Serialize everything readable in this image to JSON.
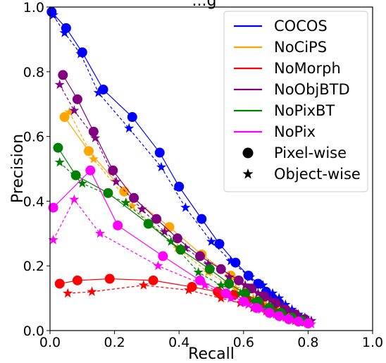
{
  "chart_data": {
    "type": "scatter",
    "title": "...g",
    "xlabel": "Recall",
    "ylabel": "Precision",
    "xlim": [
      0.0,
      1.0
    ],
    "ylim": [
      0.0,
      1.0
    ],
    "xticks": [
      "0.0",
      "0.2",
      "0.4",
      "0.6",
      "0.8",
      "1.0"
    ],
    "yticks": [
      "0.0",
      "0.2",
      "0.4",
      "0.6",
      "0.8",
      "1.0"
    ],
    "grid": false,
    "legend_position": "top-right",
    "series": [
      {
        "name": "COCOS",
        "color": "#0000ff",
        "pixel": [
          [
            0.005,
            0.985
          ],
          [
            0.05,
            0.935
          ],
          [
            0.1,
            0.86
          ],
          [
            0.165,
            0.745
          ],
          [
            0.255,
            0.66
          ],
          [
            0.34,
            0.55
          ],
          [
            0.4,
            0.445
          ],
          [
            0.47,
            0.345
          ],
          [
            0.525,
            0.268
          ],
          [
            0.575,
            0.21
          ],
          [
            0.615,
            0.17
          ],
          [
            0.645,
            0.145
          ],
          [
            0.67,
            0.12
          ],
          [
            0.69,
            0.1
          ],
          [
            0.71,
            0.085
          ],
          [
            0.73,
            0.065
          ],
          [
            0.75,
            0.05
          ],
          [
            0.77,
            0.04
          ],
          [
            0.79,
            0.03
          ]
        ],
        "object": [
          [
            0.01,
            0.975
          ],
          [
            0.045,
            0.92
          ],
          [
            0.095,
            0.855
          ],
          [
            0.15,
            0.735
          ],
          [
            0.245,
            0.625
          ],
          [
            0.345,
            0.505
          ],
          [
            0.42,
            0.38
          ],
          [
            0.5,
            0.275
          ],
          [
            0.56,
            0.215
          ],
          [
            0.62,
            0.165
          ],
          [
            0.66,
            0.14
          ],
          [
            0.69,
            0.115
          ],
          [
            0.71,
            0.1
          ],
          [
            0.73,
            0.08
          ],
          [
            0.75,
            0.065
          ],
          [
            0.77,
            0.05
          ],
          [
            0.79,
            0.04
          ],
          [
            0.81,
            0.03
          ]
        ]
      },
      {
        "name": "NoCiPS",
        "color": "#ffa500",
        "pixel": [
          [
            0.045,
            0.66
          ],
          [
            0.12,
            0.555
          ],
          [
            0.23,
            0.43
          ],
          [
            0.37,
            0.32
          ],
          [
            0.47,
            0.235
          ],
          [
            0.56,
            0.17
          ],
          [
            0.615,
            0.13
          ],
          [
            0.66,
            0.1
          ],
          [
            0.7,
            0.075
          ],
          [
            0.73,
            0.055
          ],
          [
            0.76,
            0.04
          ],
          [
            0.79,
            0.03
          ]
        ],
        "object": [
          [
            0.06,
            0.675
          ],
          [
            0.135,
            0.53
          ],
          [
            0.255,
            0.385
          ],
          [
            0.395,
            0.255
          ],
          [
            0.49,
            0.18
          ],
          [
            0.575,
            0.13
          ],
          [
            0.63,
            0.1
          ],
          [
            0.67,
            0.08
          ],
          [
            0.71,
            0.06
          ],
          [
            0.74,
            0.045
          ],
          [
            0.77,
            0.035
          ],
          [
            0.8,
            0.025
          ]
        ]
      },
      {
        "name": "NoMorph",
        "color": "#ff0000",
        "pixel": [
          [
            0.03,
            0.145
          ],
          [
            0.085,
            0.155
          ],
          [
            0.185,
            0.16
          ],
          [
            0.32,
            0.155
          ],
          [
            0.44,
            0.135
          ],
          [
            0.52,
            0.12
          ],
          [
            0.57,
            0.11
          ],
          [
            0.61,
            0.095
          ],
          [
            0.65,
            0.08
          ],
          [
            0.69,
            0.065
          ],
          [
            0.72,
            0.05
          ],
          [
            0.75,
            0.04
          ],
          [
            0.78,
            0.03
          ]
        ],
        "object": [
          [
            0.055,
            0.115
          ],
          [
            0.13,
            0.12
          ],
          [
            0.29,
            0.14
          ],
          [
            0.43,
            0.125
          ],
          [
            0.53,
            0.1
          ],
          [
            0.59,
            0.085
          ],
          [
            0.63,
            0.07
          ],
          [
            0.67,
            0.06
          ],
          [
            0.7,
            0.05
          ],
          [
            0.73,
            0.04
          ],
          [
            0.76,
            0.03
          ],
          [
            0.79,
            0.025
          ]
        ]
      },
      {
        "name": "NoObjBTD",
        "color": "#800080",
        "pixel": [
          [
            0.04,
            0.79
          ],
          [
            0.085,
            0.715
          ],
          [
            0.135,
            0.615
          ],
          [
            0.195,
            0.495
          ],
          [
            0.26,
            0.41
          ],
          [
            0.33,
            0.345
          ],
          [
            0.395,
            0.285
          ],
          [
            0.465,
            0.23
          ],
          [
            0.53,
            0.19
          ],
          [
            0.585,
            0.155
          ],
          [
            0.625,
            0.13
          ],
          [
            0.665,
            0.105
          ],
          [
            0.7,
            0.085
          ],
          [
            0.73,
            0.065
          ],
          [
            0.76,
            0.05
          ],
          [
            0.79,
            0.035
          ]
        ],
        "object": [
          [
            0.03,
            0.76
          ],
          [
            0.075,
            0.68
          ],
          [
            0.14,
            0.595
          ],
          [
            0.205,
            0.46
          ],
          [
            0.285,
            0.375
          ],
          [
            0.355,
            0.305
          ],
          [
            0.42,
            0.255
          ],
          [
            0.49,
            0.205
          ],
          [
            0.555,
            0.165
          ],
          [
            0.605,
            0.14
          ],
          [
            0.645,
            0.115
          ],
          [
            0.685,
            0.095
          ],
          [
            0.72,
            0.075
          ],
          [
            0.75,
            0.055
          ],
          [
            0.78,
            0.04
          ],
          [
            0.81,
            0.03
          ]
        ]
      },
      {
        "name": "NoPixBT",
        "color": "#008000",
        "pixel": [
          [
            0.025,
            0.565
          ],
          [
            0.08,
            0.48
          ],
          [
            0.18,
            0.425
          ],
          [
            0.305,
            0.33
          ],
          [
            0.405,
            0.25
          ],
          [
            0.495,
            0.19
          ],
          [
            0.555,
            0.145
          ],
          [
            0.605,
            0.115
          ],
          [
            0.645,
            0.09
          ],
          [
            0.68,
            0.07
          ],
          [
            0.715,
            0.055
          ],
          [
            0.75,
            0.04
          ],
          [
            0.78,
            0.03
          ]
        ],
        "object": [
          [
            0.03,
            0.52
          ],
          [
            0.1,
            0.455
          ],
          [
            0.235,
            0.395
          ],
          [
            0.375,
            0.275
          ],
          [
            0.46,
            0.18
          ],
          [
            0.53,
            0.14
          ],
          [
            0.59,
            0.115
          ],
          [
            0.63,
            0.09
          ],
          [
            0.67,
            0.07
          ],
          [
            0.7,
            0.055
          ],
          [
            0.73,
            0.045
          ],
          [
            0.76,
            0.035
          ],
          [
            0.79,
            0.025
          ]
        ]
      },
      {
        "name": "NoPix",
        "color": "#ff00ff",
        "pixel": [
          [
            0.01,
            0.38
          ],
          [
            0.125,
            0.495
          ],
          [
            0.21,
            0.325
          ],
          [
            0.35,
            0.23
          ],
          [
            0.465,
            0.155
          ],
          [
            0.545,
            0.115
          ],
          [
            0.6,
            0.09
          ],
          [
            0.64,
            0.07
          ],
          [
            0.68,
            0.055
          ],
          [
            0.71,
            0.045
          ],
          [
            0.74,
            0.035
          ],
          [
            0.77,
            0.028
          ],
          [
            0.8,
            0.022
          ]
        ],
        "object": [
          [
            0.01,
            0.28
          ],
          [
            0.075,
            0.405
          ],
          [
            0.155,
            0.3
          ],
          [
            0.335,
            0.2
          ],
          [
            0.48,
            0.14
          ],
          [
            0.56,
            0.1
          ],
          [
            0.615,
            0.08
          ],
          [
            0.655,
            0.065
          ],
          [
            0.69,
            0.05
          ],
          [
            0.72,
            0.04
          ],
          [
            0.75,
            0.032
          ],
          [
            0.78,
            0.025
          ],
          [
            0.81,
            0.02
          ]
        ]
      }
    ],
    "marker_legend": [
      {
        "label": "Pixel-wise",
        "marker": "circle"
      },
      {
        "label": "Object-wise",
        "marker": "star"
      }
    ]
  }
}
